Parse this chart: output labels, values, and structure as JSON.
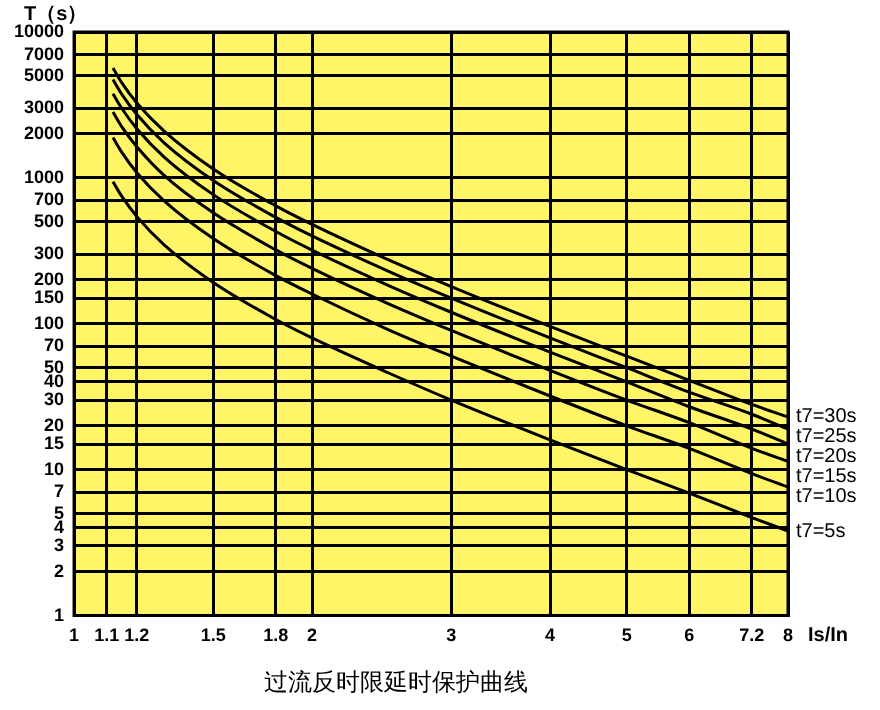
{
  "chart_data": {
    "type": "line",
    "title": "过流反时限延时保护曲线",
    "xlabel": "Is/In",
    "ylabel": "T（s）",
    "log": "xy",
    "grid": true,
    "legend": false,
    "marker": "none",
    "line_style": "solid",
    "xlim": [
      1,
      8
    ],
    "xticks": [
      1,
      1.1,
      1.2,
      1.5,
      1.8,
      2,
      3,
      4,
      5,
      6,
      7.2,
      8
    ],
    "ylim": [
      1,
      10000
    ],
    "yticks": [
      1,
      2,
      3,
      4,
      5,
      7,
      10,
      15,
      20,
      30,
      40,
      50,
      70,
      100,
      150,
      200,
      300,
      500,
      700,
      1000,
      2000,
      3000,
      5000,
      7000,
      10000
    ],
    "x": [
      1.12,
      1.15,
      1.2,
      1.3,
      1.5,
      1.8,
      2,
      2.5,
      3,
      4,
      5,
      6,
      7.2,
      8
    ],
    "series": [
      {
        "name": "t7=30s",
        "color": "#000000",
        "values": [
          5660,
          4460,
          3270,
          2090,
          1150,
          643,
          480,
          274,
          180,
          96,
          60,
          41,
          28,
          23
        ]
      },
      {
        "name": "t7=25s",
        "color": "#000000",
        "values": [
          4720,
          3720,
          2730,
          1740,
          960,
          536,
          400,
          229,
          150,
          80,
          50,
          34,
          24,
          19
        ]
      },
      {
        "name": "t7=20s",
        "color": "#000000",
        "values": [
          3770,
          2980,
          2180,
          1390,
          768,
          429,
          320,
          183,
          120,
          64,
          40,
          27,
          19,
          15
        ]
      },
      {
        "name": "t7=15s",
        "color": "#000000",
        "values": [
          2830,
          2230,
          1640,
          1040,
          576,
          321,
          240,
          137,
          90,
          48,
          30,
          21,
          14,
          11.4
        ]
      },
      {
        "name": "t7=10s",
        "color": "#000000",
        "values": [
          1890,
          1490,
          1090,
          696,
          384,
          214,
          160,
          91,
          60,
          32,
          20,
          14,
          9.4,
          7.6
        ]
      },
      {
        "name": "t7=5s",
        "color": "#000000",
        "values": [
          940,
          744,
          545,
          348,
          192,
          107,
          80,
          46,
          30,
          16,
          10,
          6.9,
          4.7,
          3.8
        ]
      }
    ]
  }
}
